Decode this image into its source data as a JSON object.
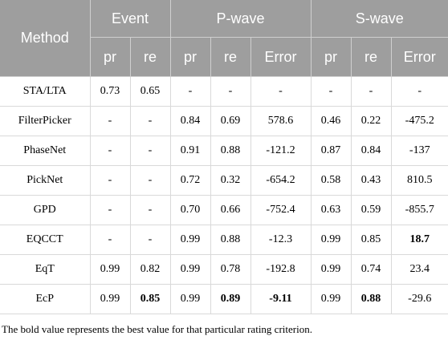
{
  "header": {
    "method": "Method",
    "event": "Event",
    "pwave": "P-wave",
    "swave": "S-wave",
    "sub": [
      "pr",
      "re",
      "pr",
      "re",
      "Error",
      "pr",
      "re",
      "Error"
    ]
  },
  "rows": [
    {
      "method": "STA/LTA",
      "cells": [
        "0.73",
        "0.65",
        "-",
        "-",
        "-",
        "-",
        "-",
        "-"
      ]
    },
    {
      "method": "FilterPicker",
      "cells": [
        "-",
        "-",
        "0.84",
        "0.69",
        "578.6",
        "0.46",
        "0.22",
        "-475.2"
      ]
    },
    {
      "method": "PhaseNet",
      "cells": [
        "-",
        "-",
        "0.91",
        "0.88",
        "-121.2",
        "0.87",
        "0.84",
        "-137"
      ]
    },
    {
      "method": "PickNet",
      "cells": [
        "-",
        "-",
        "0.72",
        "0.32",
        "-654.2",
        "0.58",
        "0.43",
        "810.5"
      ]
    },
    {
      "method": "GPD",
      "cells": [
        "-",
        "-",
        "0.70",
        "0.66",
        "-752.4",
        "0.63",
        "0.59",
        "-855.7"
      ]
    },
    {
      "method": "EQCCT",
      "cells": [
        "-",
        "-",
        "0.99",
        "0.88",
        "-12.3",
        "0.99",
        "0.85",
        "18.7"
      ]
    },
    {
      "method": "EqT",
      "cells": [
        "0.99",
        "0.82",
        "0.99",
        "0.78",
        "-192.8",
        "0.99",
        "0.74",
        "23.4"
      ]
    },
    {
      "method": "EcP",
      "cells": [
        "0.99",
        "0.85",
        "0.99",
        "0.89",
        "-9.11",
        "0.99",
        "0.88",
        "-29.6"
      ]
    }
  ],
  "footnote": "The bold value represents the best value for that particular rating criterion."
}
